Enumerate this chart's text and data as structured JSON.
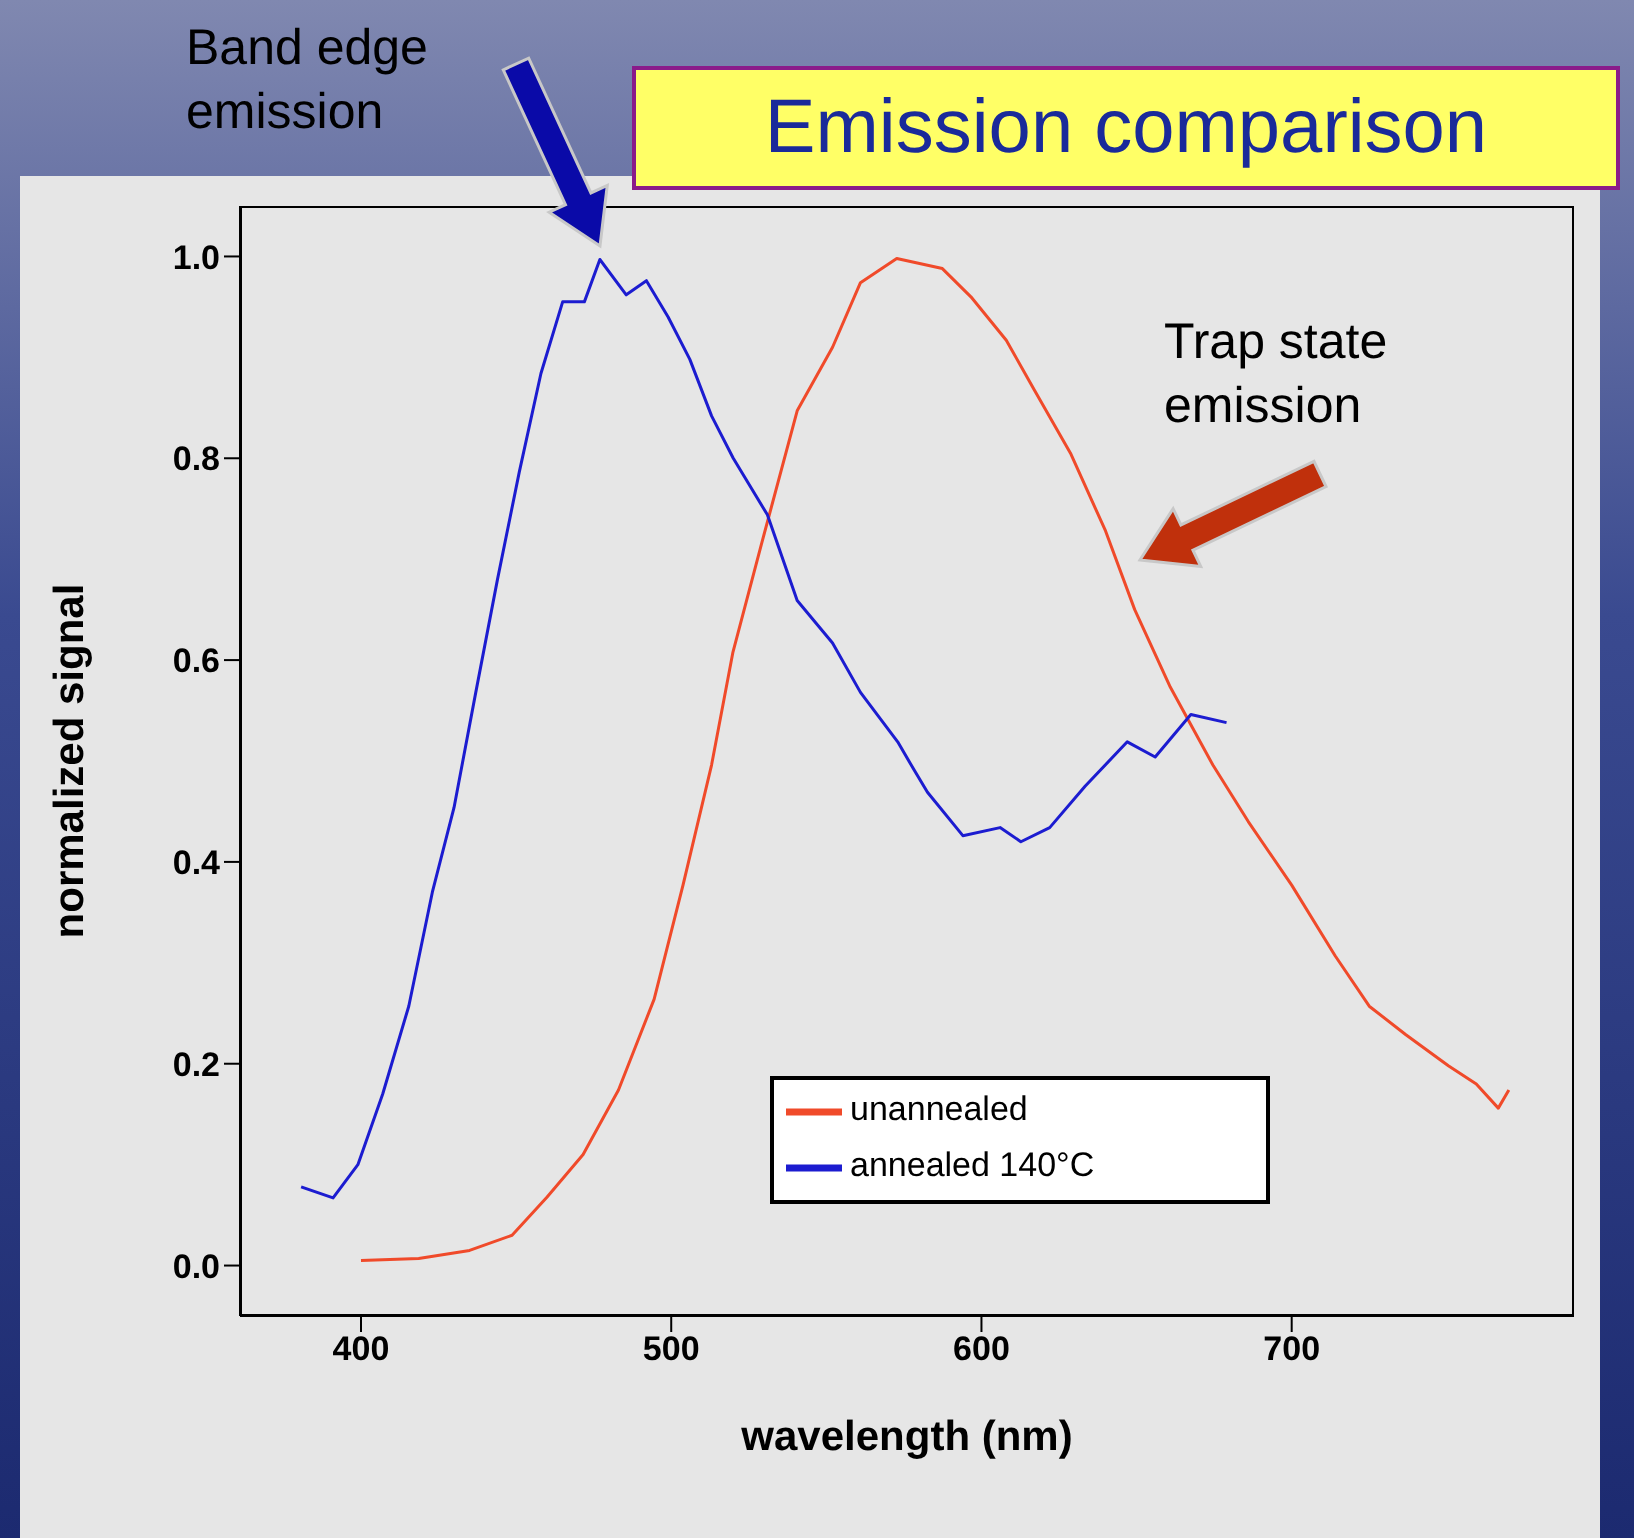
{
  "chart_data": {
    "type": "line",
    "title": "Emission comparison",
    "xlabel": "wavelength (nm)",
    "ylabel": "normalized signal",
    "xlim": [
      361,
      791
    ],
    "ylim": [
      -0.05,
      1.05
    ],
    "xticks": [
      400,
      500,
      600,
      700
    ],
    "yticks": [
      {
        "value": 0,
        "label": "0.0"
      },
      {
        "value": 0.2,
        "label": "0.2"
      },
      {
        "value": 0.4,
        "label": "0.4"
      },
      {
        "value": 0.6,
        "label": "0.6"
      },
      {
        "value": 0.8,
        "label": "0.8"
      },
      {
        "value": 1,
        "label": "1.0"
      }
    ],
    "grid": false,
    "legend": "bottom right",
    "marker": "none",
    "line_style": "solid",
    "annotations": [
      "Band edge emission",
      "Trap state emission"
    ],
    "series": [
      {
        "name": "unannealed",
        "color": "#f04a2a",
        "x": [
          400,
          418.6,
          435,
          448.7,
          460,
          471.6,
          483,
          494.5,
          503.8,
          513,
          519.9,
          529,
          540.6,
          552,
          561,
          572.7,
          587.4,
          596.6,
          608,
          617,
          628.7,
          640,
          649.4,
          660.9,
          674.6,
          686,
          700,
          714,
          725,
          736.7,
          750.5,
          759.5,
          766.6,
          770
        ],
        "values": [
          0.005,
          0.007,
          0.015,
          0.03,
          0.068,
          0.11,
          0.174,
          0.264,
          0.377,
          0.496,
          0.608,
          0.714,
          0.847,
          0.91,
          0.974,
          0.998,
          0.988,
          0.96,
          0.917,
          0.868,
          0.805,
          0.728,
          0.65,
          0.573,
          0.496,
          0.44,
          0.377,
          0.307,
          0.257,
          0.229,
          0.198,
          0.18,
          0.156,
          0.174
        ]
      },
      {
        "name": "annealed 140°C",
        "color": "#1c1cd0",
        "x": [
          380.7,
          391,
          399,
          407,
          415.4,
          423,
          430,
          437,
          444,
          451,
          458,
          465,
          472,
          477,
          485.5,
          492,
          499,
          506,
          513,
          520,
          531,
          540.6,
          552,
          561,
          573,
          578.5,
          582.6,
          594,
          606,
          612.7,
          622,
          633.4,
          647,
          656,
          667.5,
          679
        ],
        "values": [
          0.078,
          0.067,
          0.1,
          0.17,
          0.257,
          0.37,
          0.454,
          0.568,
          0.68,
          0.786,
          0.884,
          0.955,
          0.955,
          0.997,
          0.962,
          0.976,
          0.94,
          0.898,
          0.842,
          0.8,
          0.744,
          0.659,
          0.617,
          0.568,
          0.519,
          0.49,
          0.469,
          0.426,
          0.434,
          0.42,
          0.434,
          0.475,
          0.519,
          0.504,
          0.546,
          0.538
        ]
      }
    ]
  }
}
